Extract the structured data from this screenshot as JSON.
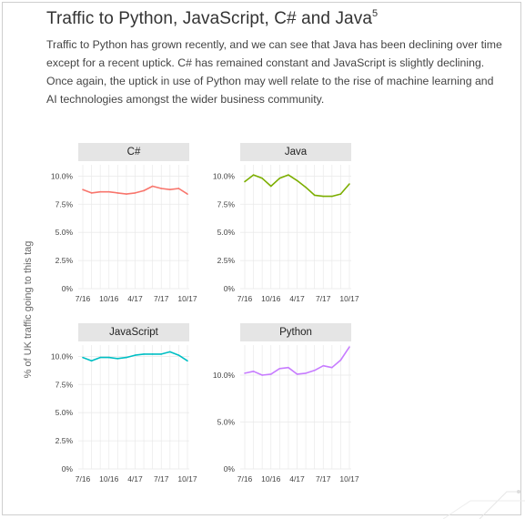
{
  "title": "Traffic to Python, JavaScript, C# and Java",
  "title_footnote": "5",
  "paragraph": "Traffic to Python has grown recently, and we can see that Java has been declining over time except for a recent uptick. C# has remained constant and JavaScript is slightly declining. Once again, the uptick in use of Python may well relate to the rise of machine learning and AI technologies amongst the wider business community.",
  "chart_data": {
    "type": "line",
    "ylabel": "% of UK traffic going to this tag",
    "x_tick_labels": [
      "7/16",
      "10/16",
      "4/17",
      "7/17",
      "10/17"
    ],
    "panels": [
      {
        "name": "C#",
        "color": "#f8766d",
        "yticks": [
          "0%",
          "2.5%",
          "5.0%",
          "7.5%",
          "10.0%"
        ],
        "ylim": [
          0,
          11
        ],
        "y": [
          8.8,
          8.5,
          8.6,
          8.6,
          8.5,
          8.4,
          8.5,
          8.7,
          9.1,
          8.9,
          8.8,
          8.9,
          8.4
        ]
      },
      {
        "name": "Java",
        "color": "#7cae00",
        "yticks": [
          "0%",
          "2.5%",
          "5.0%",
          "7.5%",
          "10.0%"
        ],
        "ylim": [
          0,
          11
        ],
        "y": [
          9.5,
          10.1,
          9.8,
          9.1,
          9.8,
          10.1,
          9.6,
          9.0,
          8.3,
          8.2,
          8.2,
          8.4,
          9.3
        ]
      },
      {
        "name": "JavaScript",
        "color": "#00bfc4",
        "yticks": [
          "0%",
          "2.5%",
          "5.0%",
          "7.5%",
          "10.0%"
        ],
        "ylim": [
          0,
          11
        ],
        "y": [
          9.9,
          9.6,
          9.9,
          9.9,
          9.8,
          9.9,
          10.1,
          10.2,
          10.2,
          10.2,
          10.4,
          10.1,
          9.6
        ]
      },
      {
        "name": "Python",
        "color": "#c77cff",
        "yticks": [
          "0%",
          "5.0%",
          "10.0%"
        ],
        "ylim": [
          0,
          13.2
        ],
        "y": [
          10.2,
          10.4,
          10.0,
          10.1,
          10.7,
          10.8,
          10.1,
          10.2,
          10.5,
          11.0,
          10.8,
          11.6,
          13.0
        ]
      }
    ]
  }
}
